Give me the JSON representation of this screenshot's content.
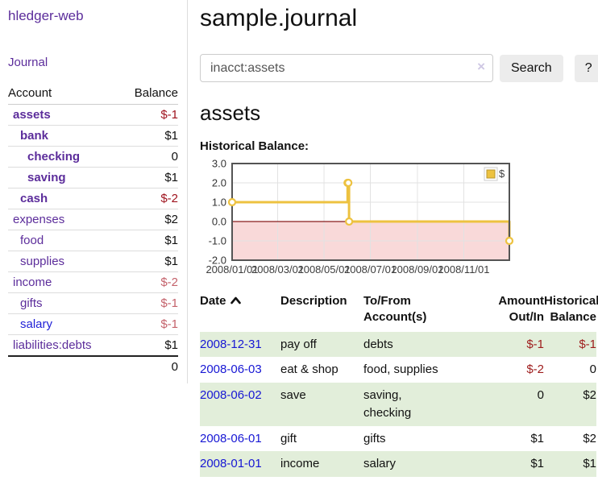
{
  "app": {
    "title": "hledger-web"
  },
  "nav": {
    "journal_label": "Journal"
  },
  "icons": {
    "clear": "×"
  },
  "sidebar": {
    "header": {
      "account": "Account",
      "balance": "Balance"
    },
    "accounts": [
      {
        "name": "assets",
        "level": 1,
        "balance": "$-1",
        "in_selection": true,
        "balance_style": "negative-strong"
      },
      {
        "name": "bank",
        "level": 2,
        "balance": "$1",
        "in_selection": true,
        "balance_style": "normal"
      },
      {
        "name": "checking",
        "level": 3,
        "balance": "0",
        "in_selection": true,
        "balance_style": "normal"
      },
      {
        "name": "saving",
        "level": 3,
        "balance": "$1",
        "in_selection": true,
        "balance_style": "normal"
      },
      {
        "name": "cash",
        "level": 2,
        "balance": "$-2",
        "in_selection": true,
        "balance_style": "negative-strong"
      },
      {
        "name": "expenses",
        "level": 1,
        "balance": "$2",
        "in_selection": false,
        "balance_style": "normal"
      },
      {
        "name": "food",
        "level": 2,
        "balance": "$1",
        "in_selection": false,
        "balance_style": "normal"
      },
      {
        "name": "supplies",
        "level": 2,
        "balance": "$1",
        "in_selection": false,
        "balance_style": "normal"
      },
      {
        "name": "income",
        "level": 1,
        "balance": "$-2",
        "in_selection": false,
        "balance_style": "negative-soft"
      },
      {
        "name": "gifts",
        "level": 2,
        "balance": "$-1",
        "in_selection": false,
        "balance_style": "negative-soft"
      },
      {
        "name": "salary",
        "level": 2,
        "balance": "$-1",
        "in_selection": false,
        "balance_style": "negative-soft",
        "link_style": "visited"
      },
      {
        "name": "liabilities:debts",
        "level": 1,
        "balance": "$1",
        "in_selection": false,
        "balance_style": "normal"
      }
    ],
    "total": "0"
  },
  "main": {
    "title": "sample.journal",
    "search": {
      "value": "inacct:assets",
      "button_label": "Search",
      "help_label": "?"
    },
    "account_heading": "assets",
    "chart_label": "Historical Balance:"
  },
  "chart_data": {
    "type": "line",
    "title": "Historical Balance",
    "series": [
      {
        "name": "$",
        "color": "#edc240",
        "step": true,
        "points": [
          [
            "2008-01-01",
            1.0
          ],
          [
            "2008-06-01",
            2.0
          ],
          [
            "2008-06-02",
            2.0
          ],
          [
            "2008-06-03",
            0.0
          ],
          [
            "2008-12-31",
            -1.0
          ]
        ]
      }
    ],
    "x_range": [
      "2008-01-01",
      "2008-12-31"
    ],
    "x_ticks": [
      "2008/01/01",
      "2008/03/01",
      "2008/05/01",
      "2008/07/01",
      "2008/09/01",
      "2008/11/01"
    ],
    "y_ticks": [
      3.0,
      2.0,
      1.0,
      0.0,
      -1.0,
      -2.0
    ],
    "ylim": [
      -2.0,
      3.0
    ],
    "grid": true,
    "legend_position": "top-right",
    "negative_region_color": "#f9d9d9",
    "zero_line_color": "#871c1c",
    "border_color": "#545454"
  },
  "table": {
    "headers": [
      {
        "line1": "Date",
        "line2": "",
        "align": "left",
        "sort": "asc"
      },
      {
        "line1": "Description",
        "line2": "",
        "align": "left"
      },
      {
        "line1": "To/From",
        "line2": "Account(s)",
        "align": "left"
      },
      {
        "line1": "Amount",
        "line2": "Out/In",
        "align": "right"
      },
      {
        "line1": "Historical",
        "line2": "Balance",
        "align": "right"
      }
    ],
    "rows": [
      {
        "date": "2008-12-31",
        "description": "pay off",
        "accounts": "debts",
        "amount": "$-1",
        "amount_negative": true,
        "balance": "$-1",
        "balance_negative": true
      },
      {
        "date": "2008-06-03",
        "description": "eat & shop",
        "accounts": "food, supplies",
        "amount": "$-2",
        "amount_negative": true,
        "balance": "0",
        "balance_negative": false
      },
      {
        "date": "2008-06-02",
        "description": "save",
        "accounts": "saving,\nchecking",
        "amount": "0",
        "amount_negative": false,
        "balance": "$2",
        "balance_negative": false
      },
      {
        "date": "2008-06-01",
        "description": "gift",
        "accounts": "gifts",
        "amount": "$1",
        "amount_negative": false,
        "balance": "$2",
        "balance_negative": false
      },
      {
        "date": "2008-01-01",
        "description": "income",
        "accounts": "salary",
        "amount": "$1",
        "amount_negative": false,
        "balance": "$1",
        "balance_negative": false
      }
    ]
  }
}
